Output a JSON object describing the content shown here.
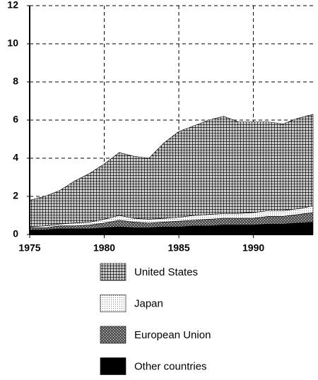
{
  "chart_data": {
    "type": "stacked-area",
    "x": [
      1975,
      1976,
      1977,
      1978,
      1979,
      1980,
      1981,
      1982,
      1983,
      1984,
      1985,
      1986,
      1987,
      1988,
      1989,
      1990,
      1991,
      1992,
      1993,
      1994
    ],
    "series": [
      {
        "name": "Other countries",
        "values": [
          0.25,
          0.25,
          0.3,
          0.3,
          0.3,
          0.35,
          0.4,
          0.35,
          0.35,
          0.4,
          0.4,
          0.45,
          0.45,
          0.5,
          0.5,
          0.5,
          0.55,
          0.55,
          0.6,
          0.65
        ]
      },
      {
        "name": "European Union",
        "values": [
          0.1,
          0.1,
          0.15,
          0.15,
          0.2,
          0.25,
          0.35,
          0.3,
          0.25,
          0.25,
          0.3,
          0.3,
          0.35,
          0.35,
          0.35,
          0.35,
          0.4,
          0.4,
          0.45,
          0.5
        ]
      },
      {
        "name": "Japan",
        "values": [
          0.05,
          0.1,
          0.1,
          0.15,
          0.15,
          0.2,
          0.25,
          0.2,
          0.2,
          0.2,
          0.2,
          0.25,
          0.25,
          0.25,
          0.25,
          0.3,
          0.3,
          0.3,
          0.3,
          0.35
        ]
      },
      {
        "name": "United States",
        "values": [
          1.4,
          1.55,
          1.75,
          2.2,
          2.55,
          2.9,
          3.3,
          3.25,
          3.2,
          3.95,
          4.5,
          4.7,
          4.95,
          5.1,
          4.8,
          4.75,
          4.65,
          4.55,
          4.75,
          4.8
        ]
      }
    ],
    "xlim": [
      1975,
      1994
    ],
    "xticks": [
      1975,
      1980,
      1985,
      1990
    ],
    "ylim": [
      0,
      12
    ],
    "yticks": [
      0,
      2,
      4,
      6,
      8,
      10,
      12
    ],
    "grid": true
  }
}
